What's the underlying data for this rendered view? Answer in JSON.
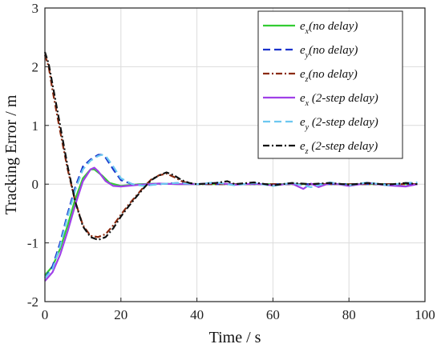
{
  "chart_data": {
    "type": "line",
    "xlabel": "Time / s",
    "ylabel": "Tracking Error / m",
    "xlim": [
      0,
      100
    ],
    "ylim": [
      -2,
      3
    ],
    "xticks": [
      "0",
      "20",
      "40",
      "60",
      "80",
      "100"
    ],
    "yticks": [
      "-2",
      "-1",
      "0",
      "1",
      "2",
      "3"
    ],
    "grid": true,
    "legend_position": "top-right",
    "series": [
      {
        "name": "e_x(no delay)",
        "legend_main": "e",
        "legend_sub": "x",
        "legend_rest": "(no delay)",
        "color": "#33cc33",
        "dash": "solid",
        "x": [
          0,
          2,
          4,
          6,
          8,
          10,
          12,
          13,
          15,
          17,
          20,
          25,
          30,
          35,
          40,
          50,
          60,
          70,
          80,
          90,
          98
        ],
        "y": [
          -1.55,
          -1.4,
          -1.1,
          -0.7,
          -0.25,
          0.1,
          0.25,
          0.25,
          0.15,
          0.02,
          -0.03,
          0.0,
          0.01,
          0.0,
          0.0,
          0.0,
          0.0,
          0.0,
          0.0,
          0.0,
          0.0
        ]
      },
      {
        "name": "e_y(no delay)",
        "legend_main": "e",
        "legend_sub": "y",
        "legend_rest": "(no delay)",
        "color": "#1a33cc",
        "dash": "dashed",
        "x": [
          0,
          2,
          4,
          6,
          8,
          10,
          12,
          14,
          15,
          16,
          18,
          20,
          23,
          26,
          30,
          35,
          40,
          50,
          60,
          70,
          80,
          90,
          98
        ],
        "y": [
          -1.6,
          -1.4,
          -1.0,
          -0.5,
          -0.05,
          0.3,
          0.42,
          0.5,
          0.5,
          0.45,
          0.25,
          0.07,
          0.0,
          -0.02,
          0.0,
          0.02,
          0.0,
          0.0,
          0.0,
          0.0,
          0.0,
          0.0,
          0.0
        ]
      },
      {
        "name": "e_z(no delay)",
        "legend_main": "e",
        "legend_sub": "z",
        "legend_rest": "(no delay)",
        "color": "#8b2b10",
        "dash": "dashdot",
        "x": [
          0,
          1,
          2,
          4,
          6,
          8,
          10,
          12,
          14,
          16,
          18,
          20,
          22,
          24,
          26,
          28,
          30,
          32,
          34,
          36,
          38,
          40,
          50,
          60,
          70,
          80,
          90,
          98
        ],
        "y": [
          2.2,
          2.0,
          1.6,
          0.9,
          0.25,
          -0.3,
          -0.7,
          -0.88,
          -0.9,
          -0.85,
          -0.7,
          -0.52,
          -0.35,
          -0.2,
          -0.05,
          0.08,
          0.15,
          0.18,
          0.12,
          0.05,
          0.01,
          0.0,
          0.0,
          0.0,
          0.0,
          0.0,
          0.0,
          0.0
        ]
      },
      {
        "name": "e_x (2-step delay)",
        "legend_main": "e",
        "legend_sub": "x",
        "legend_rest": " (2-step delay)",
        "color": "#a040e8",
        "dash": "solid",
        "x": [
          0,
          2,
          4,
          6,
          8,
          10,
          12,
          13,
          14,
          16,
          18,
          20,
          25,
          30,
          35,
          40,
          45,
          50,
          55,
          60,
          65,
          68,
          70,
          72,
          75,
          80,
          85,
          90,
          95,
          98
        ],
        "y": [
          -1.65,
          -1.5,
          -1.2,
          -0.8,
          -0.35,
          0.05,
          0.25,
          0.28,
          0.22,
          0.05,
          -0.03,
          -0.04,
          -0.01,
          0.01,
          0.0,
          0.0,
          0.02,
          -0.01,
          0.01,
          -0.02,
          0.01,
          -0.08,
          0.01,
          -0.05,
          0.02,
          -0.03,
          0.02,
          -0.02,
          -0.04,
          0.0
        ]
      },
      {
        "name": "e_y (2-step delay)",
        "legend_main": "e",
        "legend_sub": "y",
        "legend_rest": " (2-step delay)",
        "color": "#6cc8f0",
        "dash": "dashed",
        "x": [
          0,
          2,
          4,
          6,
          8,
          10,
          12,
          14,
          15,
          16,
          18,
          20,
          23,
          26,
          30,
          35,
          40,
          45,
          50,
          55,
          60,
          65,
          70,
          75,
          80,
          85,
          90,
          95,
          98
        ],
        "y": [
          -1.6,
          -1.45,
          -1.05,
          -0.55,
          -0.1,
          0.25,
          0.4,
          0.48,
          0.5,
          0.48,
          0.3,
          0.1,
          0.0,
          -0.03,
          0.0,
          0.02,
          0.0,
          0.03,
          -0.02,
          0.02,
          -0.03,
          0.02,
          -0.05,
          0.03,
          -0.02,
          0.03,
          -0.02,
          0.02,
          0.03
        ]
      },
      {
        "name": "e_z (2-step delay)",
        "legend_main": "e",
        "legend_sub": "z",
        "legend_rest": " (2-step delay)",
        "color": "#111111",
        "dash": "dashdot",
        "x": [
          0,
          1,
          2,
          4,
          6,
          8,
          10,
          12,
          14,
          16,
          18,
          20,
          22,
          24,
          26,
          28,
          30,
          32,
          34,
          36,
          38,
          40,
          45,
          48,
          50,
          55,
          60,
          65,
          70,
          75,
          80,
          85,
          90,
          95,
          98
        ],
        "y": [
          2.25,
          2.05,
          1.7,
          1.0,
          0.3,
          -0.3,
          -0.72,
          -0.9,
          -0.95,
          -0.9,
          -0.75,
          -0.55,
          -0.38,
          -0.22,
          -0.07,
          0.07,
          0.15,
          0.2,
          0.15,
          0.07,
          0.02,
          0.0,
          0.02,
          0.05,
          0.0,
          0.03,
          -0.02,
          0.02,
          0.0,
          0.02,
          -0.01,
          0.02,
          -0.01,
          0.02,
          0.0
        ]
      }
    ]
  }
}
